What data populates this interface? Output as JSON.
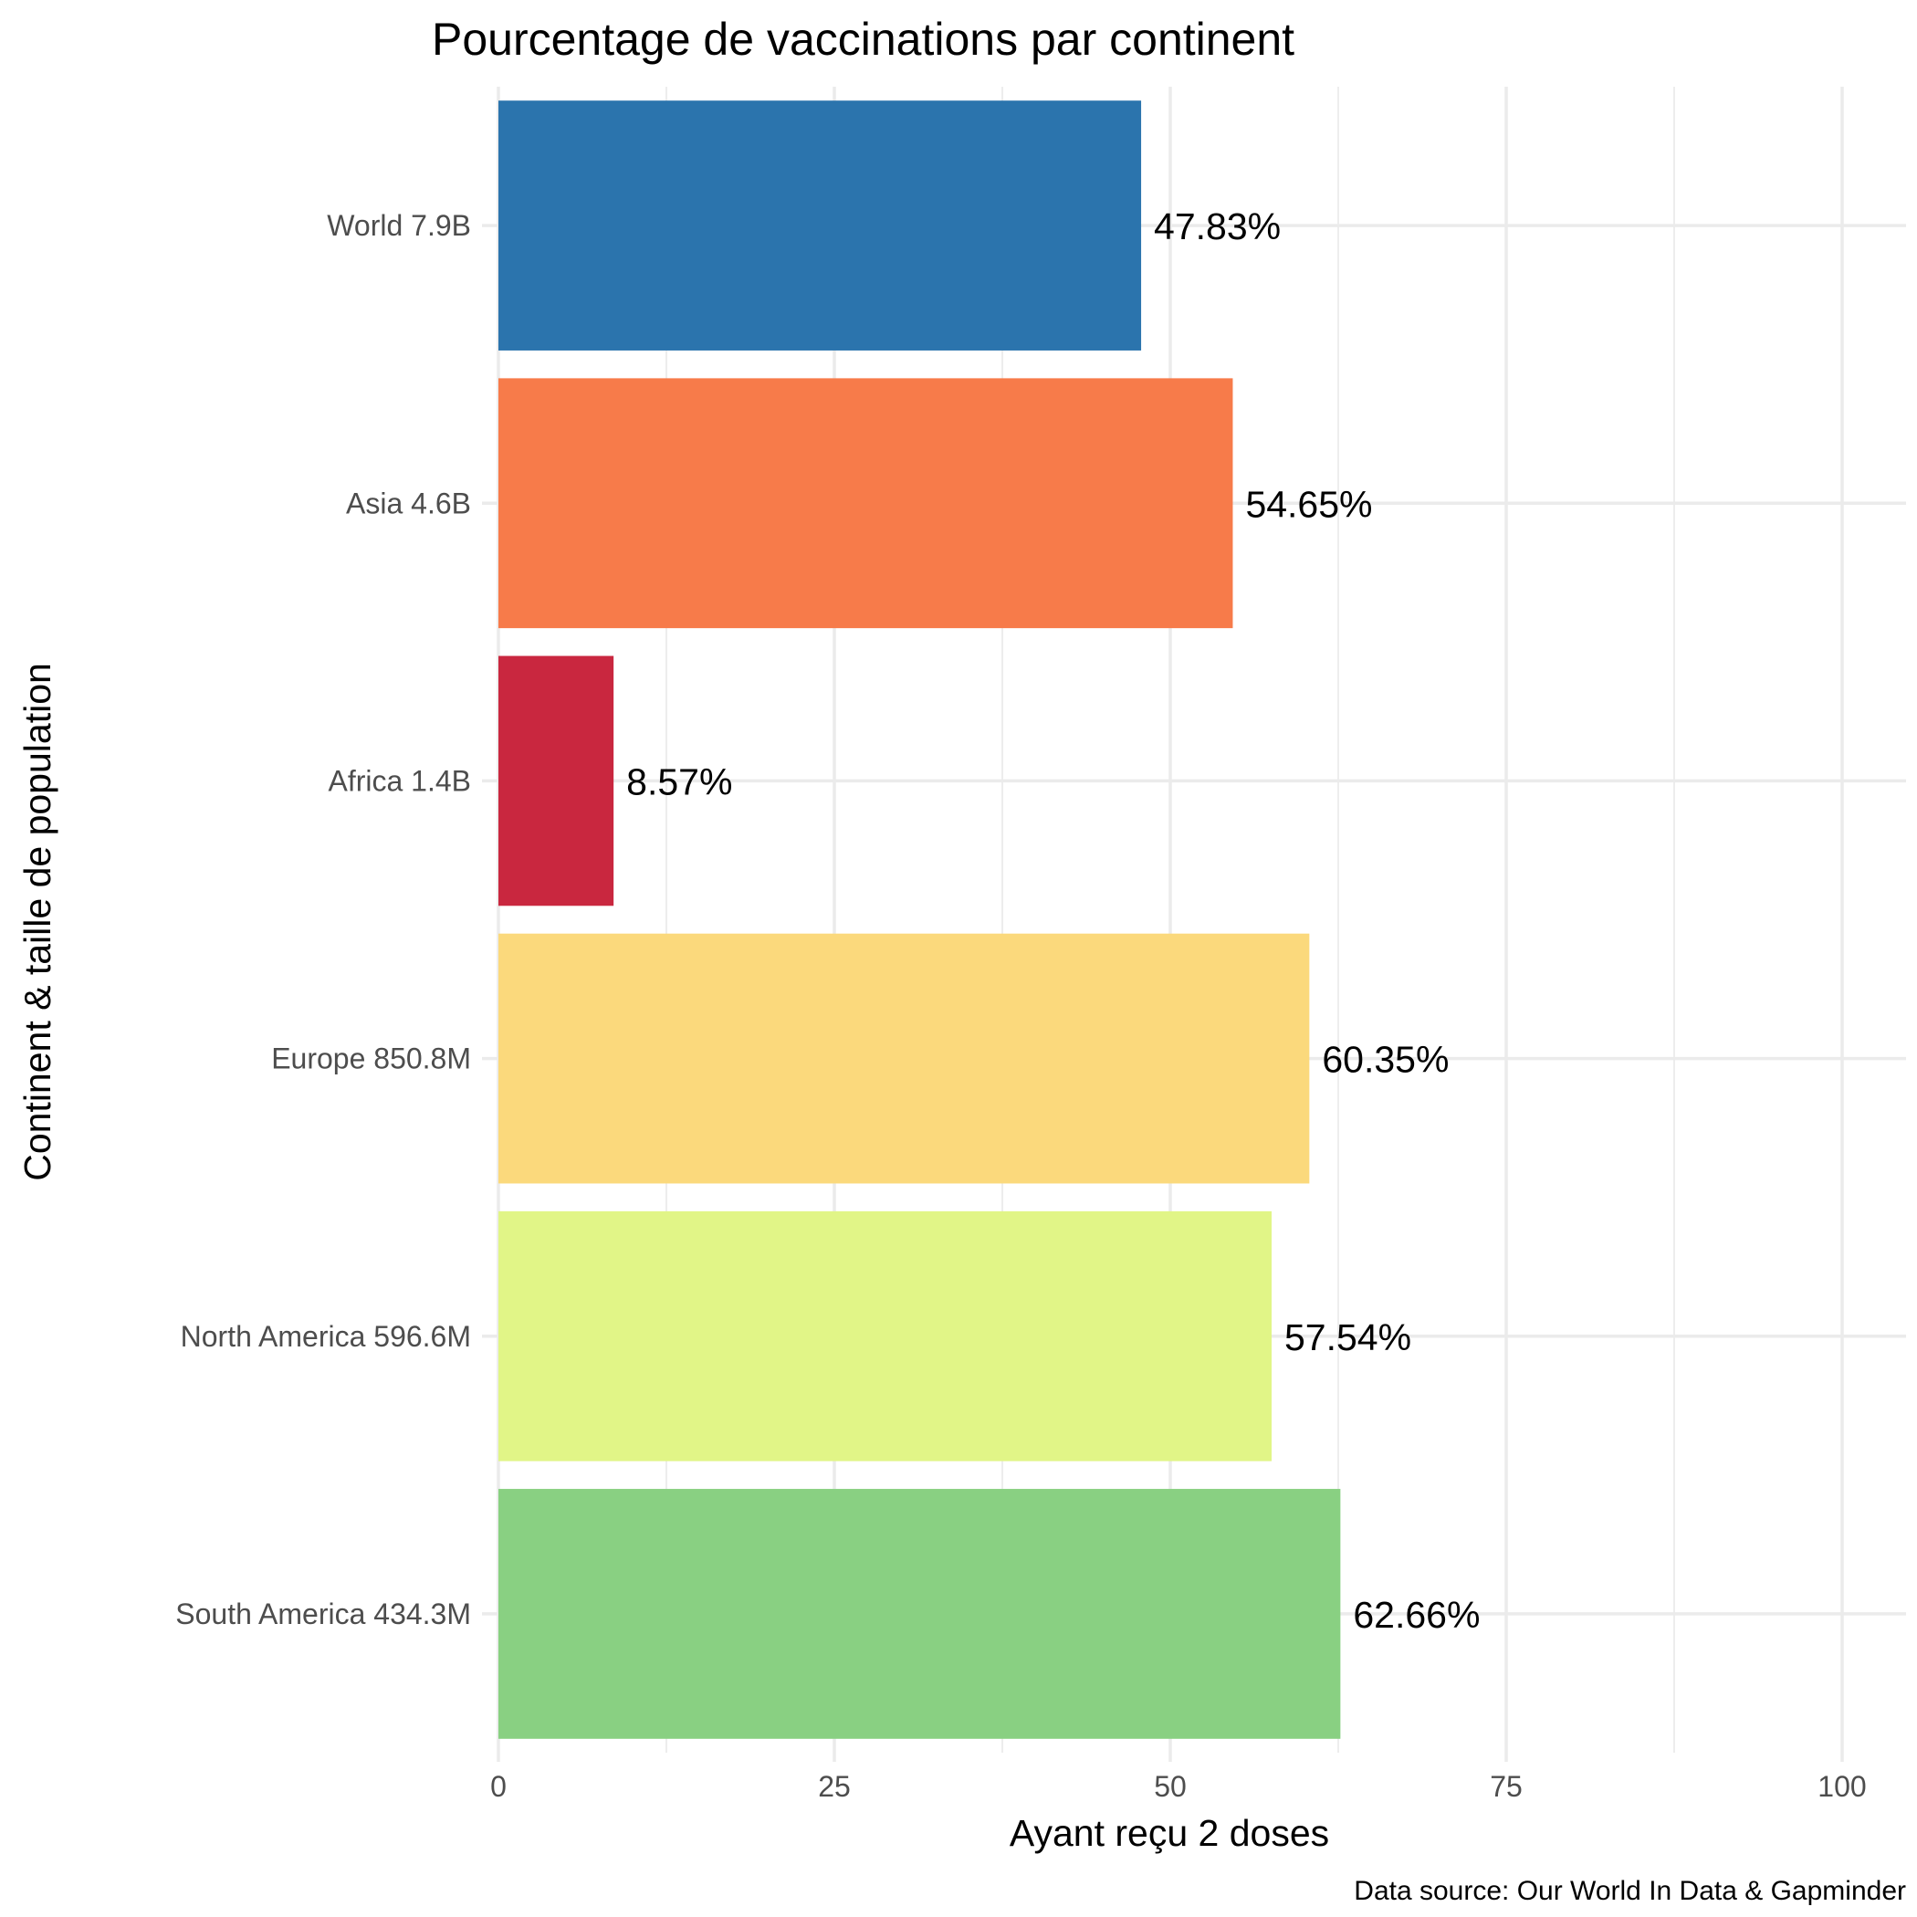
{
  "chart_data": {
    "type": "bar",
    "orientation": "horizontal",
    "title": "Pourcentage de vaccinations par continent",
    "xlabel": "Ayant reçu 2 doses",
    "ylabel": "Continent & taille de population",
    "caption": "Data source: Our World In Data & Gapminder",
    "xlim": [
      0,
      100
    ],
    "x_ticks": [
      "0",
      "25",
      "50",
      "75",
      "100"
    ],
    "grid": true,
    "legend": "none",
    "categories": [
      "World 7.9B",
      "Asia 4.6B",
      "Africa 1.4B",
      "Europe 850.8M",
      "North America 596.6M",
      "South America 434.3M"
    ],
    "values": [
      47.83,
      54.65,
      8.57,
      60.35,
      57.54,
      62.66
    ],
    "data_labels": [
      "47.83%",
      "54.65%",
      "8.57%",
      "60.35%",
      "57.54%",
      "62.66%"
    ],
    "colors": [
      "#2B74AD",
      "#F77B4A",
      "#C9273F",
      "#FBD97C",
      "#E1F587",
      "#89D082"
    ]
  }
}
